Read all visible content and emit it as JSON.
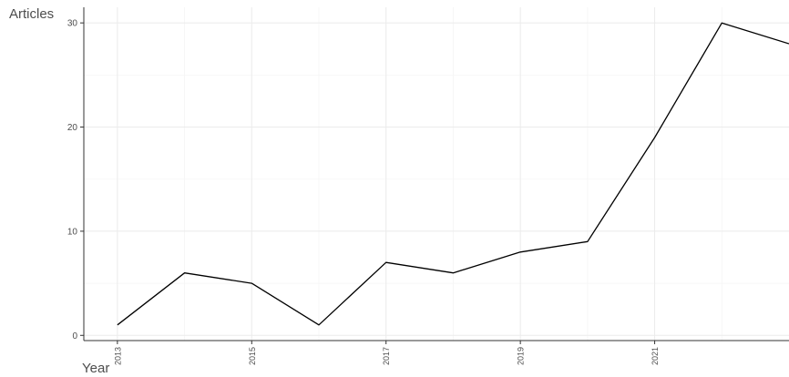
{
  "chart_data": {
    "type": "line",
    "title": "",
    "xlabel": "Year",
    "ylabel": "Articles",
    "x": [
      2013,
      2014,
      2015,
      2016,
      2017,
      2018,
      2019,
      2020,
      2021,
      2022,
      2023
    ],
    "series": [
      {
        "values": [
          1,
          6,
          5,
          1,
          7,
          6,
          8,
          9,
          19,
          30,
          28
        ]
      }
    ],
    "x_ticks": [
      "2013",
      "2015",
      "2017",
      "2019",
      "2021"
    ],
    "y_ticks": [
      "0",
      "10",
      "20",
      "30"
    ],
    "xlim": [
      2012.5,
      2023
    ],
    "ylim": [
      -0.5,
      31.5
    ],
    "grid": true,
    "legend": "none",
    "colors": {
      "line": "#000000",
      "grid_major": "#ebebeb",
      "grid_minor": "#f5f5f5",
      "axis": "#333333",
      "text": "#4d4d4d"
    }
  }
}
